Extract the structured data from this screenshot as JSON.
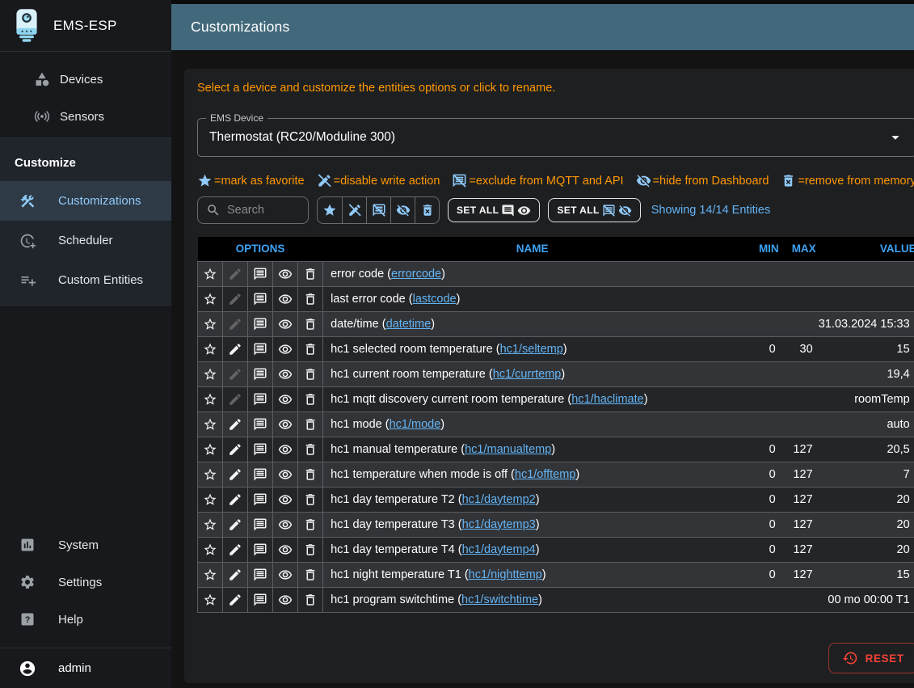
{
  "app": {
    "title": "EMS-ESP"
  },
  "topbar": {
    "title": "Customizations"
  },
  "sidebar": {
    "items_top": [
      {
        "label": "Devices",
        "icon": "category-icon"
      },
      {
        "label": "Sensors",
        "icon": "sensors-icon"
      }
    ],
    "section_label": "Customize",
    "items_customize": [
      {
        "label": "Customizations",
        "icon": "construction-icon",
        "active": true
      },
      {
        "label": "Scheduler",
        "icon": "more-time-icon",
        "active": false
      },
      {
        "label": "Custom Entities",
        "icon": "playlist-add-icon",
        "active": false
      }
    ],
    "items_bottom": [
      {
        "label": "System",
        "icon": "analytics-icon"
      },
      {
        "label": "Settings",
        "icon": "settings-icon"
      },
      {
        "label": "Help",
        "icon": "help-icon"
      }
    ],
    "user": {
      "label": "admin",
      "icon": "account-circle-icon"
    }
  },
  "main": {
    "instruction": "Select a device and customize the entities options or click to rename.",
    "device_select": {
      "label": "EMS Device",
      "value": "Thermostat (RC20/Moduline 300)",
      "caret": "caret-down-icon"
    },
    "legend": [
      {
        "icon": "star-icon",
        "text": "=mark as favorite"
      },
      {
        "icon": "edit-off-icon",
        "text": "=disable write action"
      },
      {
        "icon": "comments-disabled-icon",
        "text": "=exclude from MQTT and API"
      },
      {
        "icon": "visibility-off-icon",
        "text": "=hide from Dashboard"
      },
      {
        "icon": "delete-forever-icon",
        "text": "=remove from memory"
      }
    ],
    "toolbar": {
      "search_placeholder": "Search",
      "filter_icons": [
        "star-icon",
        "edit-off-icon",
        "comments-disabled-icon",
        "visibility-off-icon",
        "delete-forever-icon"
      ],
      "set_all_buttons": [
        {
          "label": "SET ALL",
          "icons": [
            "comment-icon",
            "visibility-icon"
          ]
        },
        {
          "label": "SET ALL",
          "icons": [
            "comments-disabled-icon",
            "visibility-off-icon"
          ]
        }
      ],
      "showing_text": "Showing 14/14 Entities"
    },
    "table": {
      "headers": {
        "options": "OPTIONS",
        "name": "NAME",
        "min": "MIN",
        "max": "MAX",
        "value": "VALUE"
      },
      "rows": [
        {
          "name": "error code",
          "tag": "errorcode",
          "min": "",
          "max": "",
          "value": "",
          "writable": false
        },
        {
          "name": "last error code",
          "tag": "lastcode",
          "min": "",
          "max": "",
          "value": "",
          "writable": false
        },
        {
          "name": "date/time",
          "tag": "datetime",
          "min": "",
          "max": "",
          "value": "31.03.2024 15:33",
          "writable": false
        },
        {
          "name": "hc1 selected room temperature",
          "tag": "hc1/seltemp",
          "min": "0",
          "max": "30",
          "value": "15",
          "writable": true
        },
        {
          "name": "hc1 current room temperature",
          "tag": "hc1/currtemp",
          "min": "",
          "max": "",
          "value": "19,4",
          "writable": false
        },
        {
          "name": "hc1 mqtt discovery current room temperature",
          "tag": "hc1/haclimate",
          "min": "",
          "max": "",
          "value": "roomTemp",
          "writable": false
        },
        {
          "name": "hc1 mode",
          "tag": "hc1/mode",
          "min": "",
          "max": "",
          "value": "auto",
          "writable": true
        },
        {
          "name": "hc1 manual temperature",
          "tag": "hc1/manualtemp",
          "min": "0",
          "max": "127",
          "value": "20,5",
          "writable": true
        },
        {
          "name": "hc1 temperature when mode is off",
          "tag": "hc1/offtemp",
          "min": "0",
          "max": "127",
          "value": "7",
          "writable": true
        },
        {
          "name": "hc1 day temperature T2",
          "tag": "hc1/daytemp2",
          "min": "0",
          "max": "127",
          "value": "20",
          "writable": true
        },
        {
          "name": "hc1 day temperature T3",
          "tag": "hc1/daytemp3",
          "min": "0",
          "max": "127",
          "value": "20",
          "writable": true
        },
        {
          "name": "hc1 day temperature T4",
          "tag": "hc1/daytemp4",
          "min": "0",
          "max": "127",
          "value": "20",
          "writable": true
        },
        {
          "name": "hc1 night temperature T1",
          "tag": "hc1/nighttemp",
          "min": "0",
          "max": "127",
          "value": "15",
          "writable": true
        },
        {
          "name": "hc1 program switchtime",
          "tag": "hc1/switchtime",
          "min": "",
          "max": "",
          "value": "00 mo 00:00 T1",
          "writable": true
        }
      ]
    },
    "reset_button": {
      "label": "RESET",
      "icon": "restore-icon"
    }
  },
  "colors": {
    "topbar": "#42697b",
    "accent_blue": "#90caf9",
    "link_blue": "#64b5f6",
    "header_blue": "#3da2f5",
    "warning_orange": "#ff9800",
    "error_red": "#f44336"
  }
}
